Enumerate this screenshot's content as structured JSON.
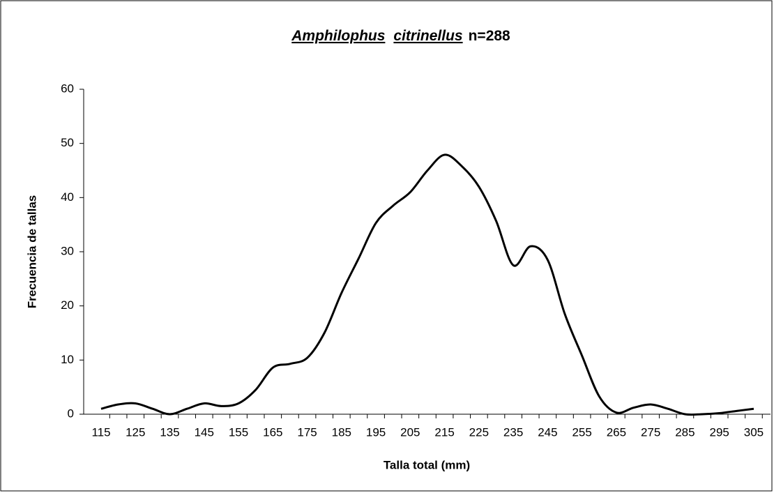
{
  "chart_data": {
    "type": "line",
    "title": [
      "Amphilophus",
      "citrinellus",
      "n=288"
    ],
    "x_label": "Talla total (mm)",
    "y_label": "Frecuencia de tallas",
    "categories": [
      "115",
      null,
      "125",
      null,
      "135",
      null,
      "145",
      null,
      "155",
      null,
      "165",
      null,
      "175",
      null,
      "185",
      null,
      "195",
      null,
      "205",
      null,
      "215",
      null,
      "225",
      null,
      "235",
      null,
      "245",
      null,
      "255",
      null,
      "265",
      null,
      "275",
      null,
      "285",
      null,
      "295",
      null,
      "305"
    ],
    "series": [
      {
        "name": "Frecuencia",
        "color": "#000000",
        "values": [
          1,
          1.8,
          2,
          1,
          0,
          1,
          2,
          1.5,
          2,
          4.5,
          8.6,
          9.3,
          10.4,
          15,
          22.4,
          28.8,
          35.3,
          38.5,
          41,
          45,
          47.9,
          45.8,
          42,
          35.7,
          27.5,
          31,
          28.5,
          18.5,
          10.8,
          3.3,
          0.3,
          1.2,
          1.8,
          1,
          0,
          0,
          0.2,
          0.6,
          1
        ]
      }
    ],
    "ylim": [
      0,
      60
    ],
    "yticks": [
      0,
      10,
      20,
      30,
      40,
      50,
      60
    ],
    "grid": false,
    "legend": false
  }
}
